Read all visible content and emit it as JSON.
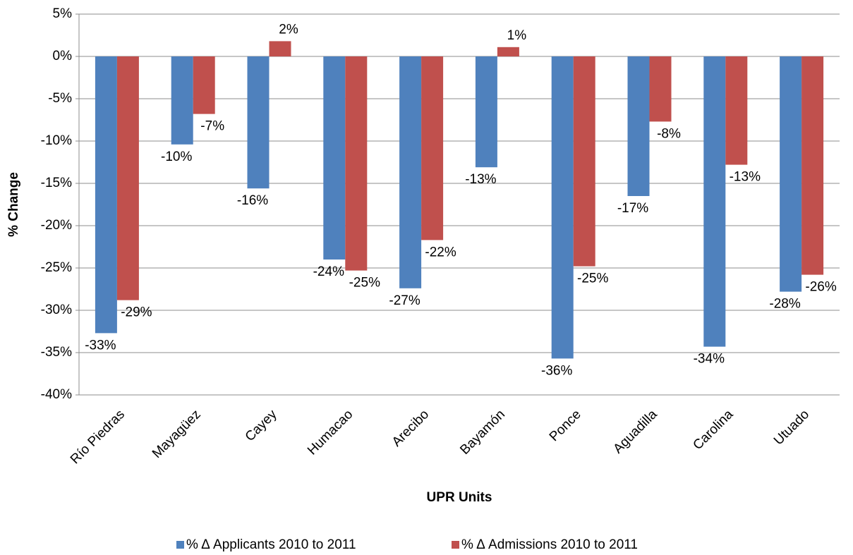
{
  "chart_data": {
    "type": "bar",
    "x_label": "UPR Units",
    "y_label": "% Change",
    "categories": [
      "Río Piedras",
      "Mayagüez",
      "Cayey",
      "Humacao",
      "Arecibo",
      "Bayamón",
      "Ponce",
      "Aguadilla",
      "Carolina",
      "Utuado"
    ],
    "series": [
      {
        "name": "% Δ Applicants 2010 to 2011",
        "color": "#4f81bd",
        "values": [
          -32.7,
          -10.4,
          -15.6,
          -24,
          -27.4,
          -13.1,
          -35.7,
          -16.5,
          -34.3,
          -27.8
        ],
        "value_labels": [
          "-33%",
          "-10%",
          "-16%",
          "-24%",
          "-27%",
          "-13%",
          "-36%",
          "-17%",
          "-34%",
          "-28%"
        ]
      },
      {
        "name": "% Δ Admissions 2010 to 2011",
        "color": "#c0504d",
        "values": [
          -28.8,
          -6.8,
          1.8,
          -25.3,
          -21.7,
          1.1,
          -24.8,
          -7.7,
          -12.8,
          -25.8
        ],
        "value_labels": [
          "-29%",
          "-7%",
          "2%",
          "-25%",
          "-22%",
          "1%",
          "-25%",
          "-8%",
          "-13%",
          "-26%"
        ]
      }
    ],
    "ylim": [
      -40,
      5
    ],
    "yticks": [
      {
        "value": 5,
        "label": "5%"
      },
      {
        "value": 0,
        "label": "0%"
      },
      {
        "value": -5,
        "label": "-5%"
      },
      {
        "value": -10,
        "label": "-10%"
      },
      {
        "value": -15,
        "label": "-15%"
      },
      {
        "value": -20,
        "label": "-20%"
      },
      {
        "value": -25,
        "label": "-25%"
      },
      {
        "value": -30,
        "label": "-30%"
      },
      {
        "value": -35,
        "label": "-35%"
      },
      {
        "value": -40,
        "label": "-40%"
      }
    ],
    "grid": true,
    "legend": "bottom"
  }
}
